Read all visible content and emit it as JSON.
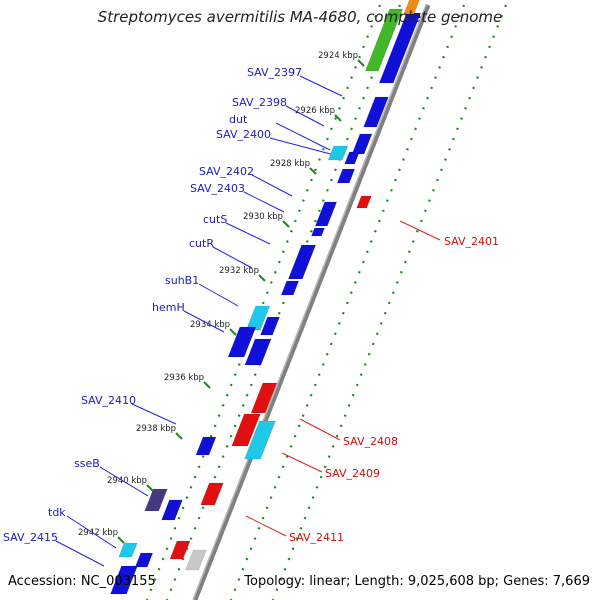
{
  "title": "Streptomyces avermitilis MA-4680, complete genome",
  "footer": {
    "accession": "Accession: NC_003155",
    "topology": "Topology: linear; Length: 9,025,608 bp; Genes: 7,669"
  },
  "colors": {
    "forward_gene": "#1010d8",
    "reverse_gene": "#e01010",
    "highlight_cyan": "#20c8e8",
    "dark_gene": "#443a80",
    "green_gene": "#40b828",
    "axis": "#808080",
    "tick": "#1a8a1a",
    "label_forward": "#1c1cb8",
    "label_reverse": "#d01010"
  },
  "kbp_ticks": [
    "2924 kbp",
    "2926 kbp",
    "2928 kbp",
    "2930 kbp",
    "2932 kbp",
    "2934 kbp",
    "2936 kbp",
    "2938 kbp",
    "2940 kbp",
    "2942 kbp"
  ],
  "left_labels": [
    "SAV_2397",
    "SAV_2398",
    "dut",
    "SAV_2400",
    "SAV_2402",
    "SAV_2403",
    "cutS",
    "cutR",
    "suhB1",
    "hemH",
    "SAV_2410",
    "sseB",
    "tdk",
    "SAV_2415"
  ],
  "right_labels": [
    "SAV_2401",
    "SAV_2408",
    "SAV_2409",
    "SAV_2411"
  ]
}
